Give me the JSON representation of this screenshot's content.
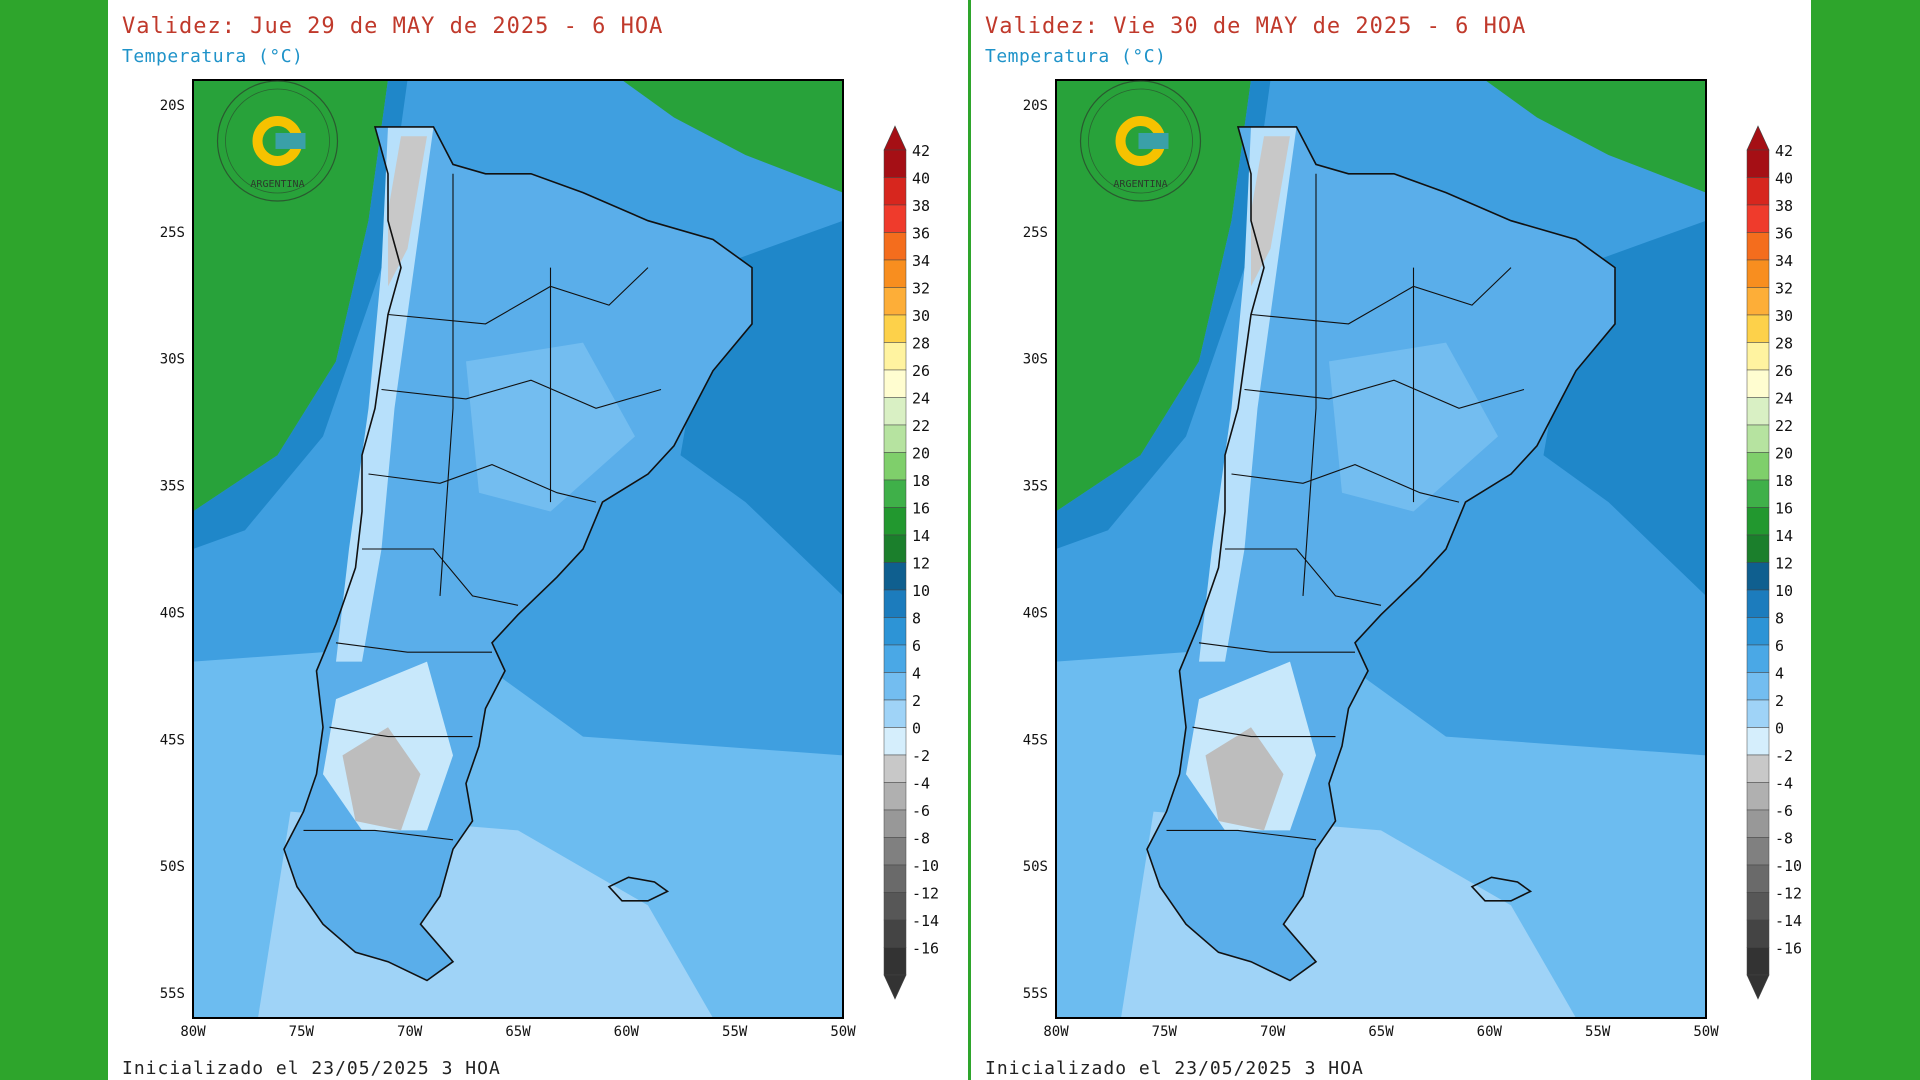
{
  "colors": {
    "frame_background": "#2ea52c",
    "title_red": "#c0392b",
    "subtitle_blue": "#1f93c9"
  },
  "panels": [
    {
      "title": "Validez: Jue 29 de MAY de 2025 - 6 HOA",
      "subtitle": "Temperatura (°C)",
      "footer": "Inicializado el 23/05/2025 3 HOA",
      "lat_labels": [
        "20S",
        "25S",
        "30S",
        "35S",
        "40S",
        "45S",
        "50S",
        "55S"
      ],
      "lon_labels": [
        "80W",
        "75W",
        "70W",
        "65W",
        "60W",
        "55W",
        "50W"
      ],
      "logo_text": "ARGENTINA",
      "colorbar": [
        "42",
        "40",
        "38",
        "36",
        "34",
        "32",
        "30",
        "28",
        "26",
        "24",
        "22",
        "20",
        "18",
        "16",
        "14",
        "12",
        "10",
        "8",
        "6",
        "4",
        "2",
        "0",
        "-2",
        "-4",
        "-6",
        "-8",
        "-10",
        "-12",
        "-14",
        "-16"
      ]
    },
    {
      "title": "Validez: Vie 30 de MAY de 2025 - 6 HOA",
      "subtitle": "Temperatura (°C)",
      "footer": "Inicializado el 23/05/2025 3 HOA",
      "lat_labels": [
        "20S",
        "25S",
        "30S",
        "35S",
        "40S",
        "45S",
        "50S",
        "55S"
      ],
      "lon_labels": [
        "80W",
        "75W",
        "70W",
        "65W",
        "60W",
        "55W",
        "50W"
      ],
      "logo_text": "ARGENTINA",
      "colorbar": [
        "42",
        "40",
        "38",
        "36",
        "34",
        "32",
        "30",
        "28",
        "26",
        "24",
        "22",
        "20",
        "18",
        "16",
        "14",
        "12",
        "10",
        "8",
        "6",
        "4",
        "2",
        "0",
        "-2",
        "-4",
        "-6",
        "-8",
        "-10",
        "-12",
        "-14",
        "-16"
      ]
    }
  ],
  "colorbar_colors": [
    "#a50f15",
    "#d7261e",
    "#ef3b2c",
    "#f46d1d",
    "#f88e1f",
    "#fdae38",
    "#fdd14a",
    "#fff3a0",
    "#fffdd0",
    "#d9f0c4",
    "#b6e3a0",
    "#7fcf6b",
    "#3fb049",
    "#22982f",
    "#1b7f2c",
    "#0f5f8f",
    "#1c7cbd",
    "#2d94d6",
    "#4aa8e6",
    "#73bdf0",
    "#9fd3f7",
    "#d5eefc",
    "#c8c8c8",
    "#b0b0b0",
    "#989898",
    "#808080",
    "#6a6a6a",
    "#575757",
    "#444444",
    "#333333"
  ]
}
